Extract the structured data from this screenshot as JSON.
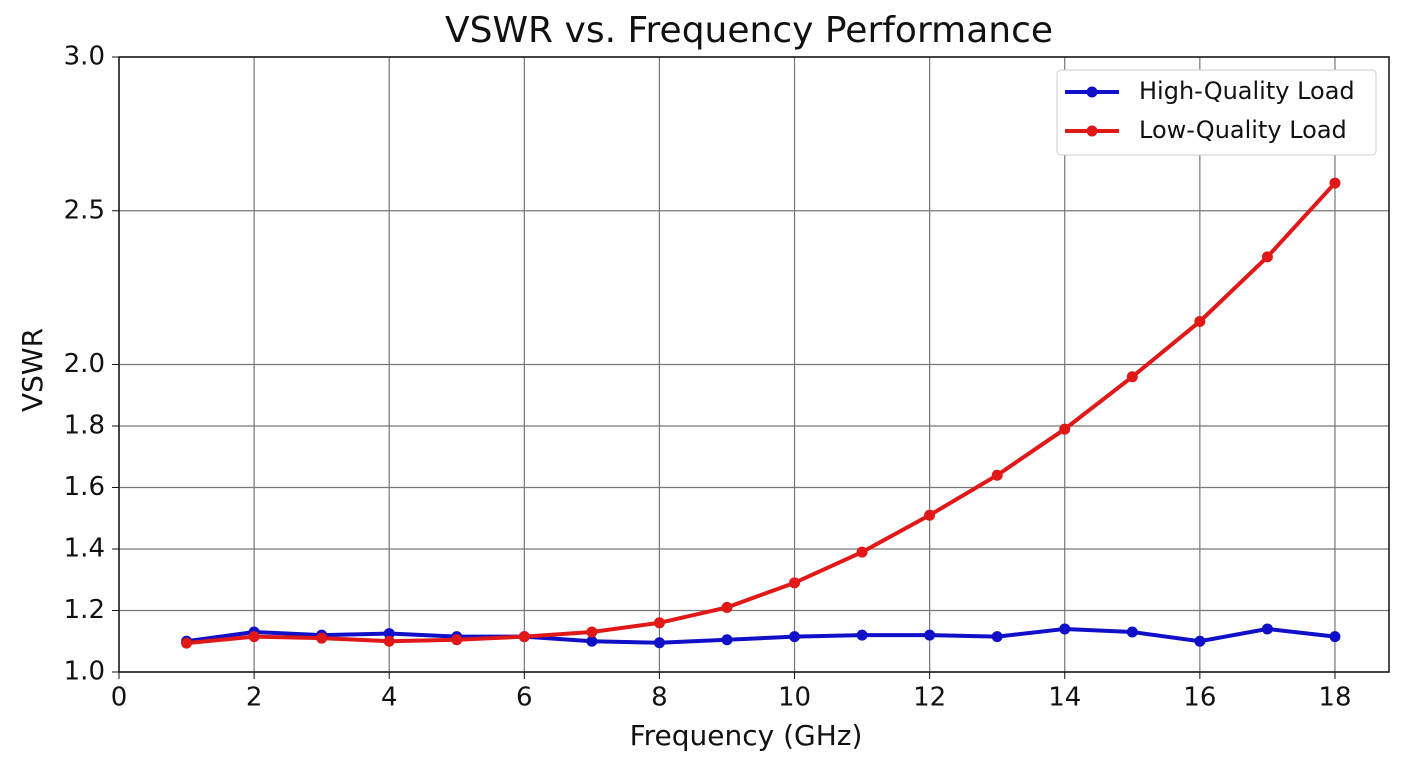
{
  "chart_data": {
    "type": "line",
    "title": "VSWR vs. Frequency Performance",
    "x_label": "Frequency (GHz)",
    "y_label": "VSWR",
    "x": [
      1,
      2,
      3,
      4,
      5,
      6,
      7,
      8,
      9,
      10,
      11,
      12,
      13,
      14,
      15,
      16,
      17,
      18
    ],
    "series": [
      {
        "name": "High-Quality Load",
        "color": "#1010c8",
        "values": [
          1.1,
          1.13,
          1.12,
          1.125,
          1.115,
          1.115,
          1.1,
          1.095,
          1.105,
          1.115,
          1.12,
          1.12,
          1.115,
          1.14,
          1.13,
          1.1,
          1.14,
          1.115
        ]
      },
      {
        "name": "Low-Quality Load",
        "color": "#e01818",
        "values": [
          1.094,
          1.115,
          1.11,
          1.1,
          1.105,
          1.115,
          1.13,
          1.16,
          1.21,
          1.29,
          1.39,
          1.51,
          1.64,
          1.79,
          1.96,
          2.14,
          2.35,
          2.59
        ]
      }
    ],
    "xlim": [
      0,
      18.8
    ],
    "xticks": [
      0,
      2,
      4,
      6,
      8,
      10,
      12,
      14,
      16,
      18
    ],
    "ylim": [
      1,
      3
    ],
    "yticks": [
      {
        "value": 1,
        "label": "1.0"
      },
      {
        "value": 1.2,
        "label": "1.2"
      },
      {
        "value": 1.4,
        "label": "1.4"
      },
      {
        "value": 1.6,
        "label": "1.6"
      },
      {
        "value": 1.8,
        "label": "1.8"
      },
      {
        "value": 2,
        "label": "2.0"
      },
      2.5,
      {
        "value": 3,
        "label": "3.0"
      }
    ],
    "grid": true,
    "legend": "upper right"
  }
}
